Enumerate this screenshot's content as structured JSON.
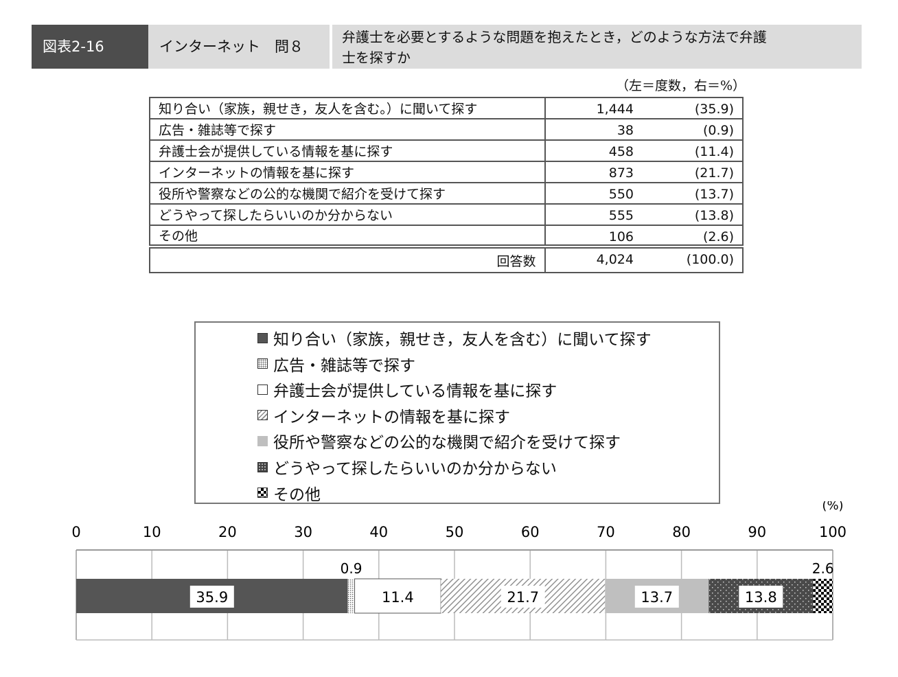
{
  "header": {
    "figure": "図表2-16",
    "section": "インターネット　問８",
    "question_line1": "弁護士を必要とするような問題を抱えたとき，どのような方法で弁護",
    "question_line2": "士を探すか"
  },
  "table": {
    "note": "（左＝度数，右＝%）",
    "rows": [
      {
        "label": "知り合い（家族，親せき，友人を含む。）に聞いて探す",
        "count": "1,444",
        "pct": "(35.9)"
      },
      {
        "label": "広告・雑誌等で探す",
        "count": "38",
        "pct": "(0.9)"
      },
      {
        "label": "弁護士会が提供している情報を基に探す",
        "count": "458",
        "pct": "(11.4)"
      },
      {
        "label": "インターネットの情報を基に探す",
        "count": "873",
        "pct": "(21.7)"
      },
      {
        "label": "役所や警察などの公的な機関で紹介を受けて探す",
        "count": "550",
        "pct": "(13.7)"
      },
      {
        "label": "どうやって探したらいいのか分からない",
        "count": "555",
        "pct": "(13.8)"
      },
      {
        "label": "その他",
        "count": "106",
        "pct": "(2.6)"
      }
    ],
    "total": {
      "label": "回答数",
      "count": "4,024",
      "pct": "(100.0)"
    }
  },
  "colors": {
    "dark": "#555555",
    "light_gray": "#bfbfbf",
    "white": "#ffffff",
    "grid": "#bbbbbb"
  },
  "chart_data": {
    "type": "bar",
    "orientation": "horizontal-stacked",
    "unit_label": "(%)",
    "xlim": [
      0,
      100
    ],
    "x_ticks": [
      0,
      10,
      20,
      30,
      40,
      50,
      60,
      70,
      80,
      90,
      100
    ],
    "grid": true,
    "legend_placement": "top",
    "series": [
      {
        "name": "知り合い（家族，親せき，友人を含む）に聞いて探す",
        "value": 35.9,
        "pattern": "solid-dark"
      },
      {
        "name": "広告・雑誌等で探す",
        "value": 0.9,
        "pattern": "dotted-fine"
      },
      {
        "name": "弁護士会が提供している情報を基に探す",
        "value": 11.4,
        "pattern": "white"
      },
      {
        "name": "インターネットの情報を基に探す",
        "value": 21.7,
        "pattern": "diagonal-hatch"
      },
      {
        "name": "役所や警察などの公的な機関で紹介を受けて探す",
        "value": 13.7,
        "pattern": "solid-light"
      },
      {
        "name": "どうやって探したらいいのか分からない",
        "value": 13.8,
        "pattern": "dark-dots"
      },
      {
        "name": "その他",
        "value": 2.6,
        "pattern": "checker"
      }
    ]
  }
}
